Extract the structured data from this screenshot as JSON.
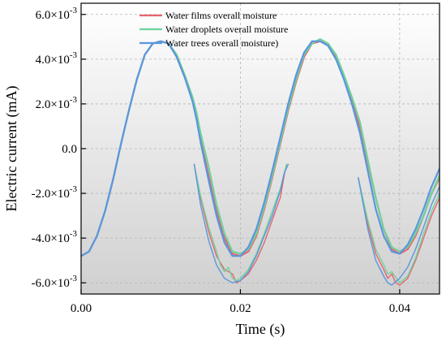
{
  "chart_data": {
    "type": "line",
    "title": "",
    "xlabel": "Time (s)",
    "ylabel": "Electric current (mA)",
    "xlim": [
      0,
      0.045
    ],
    "ylim": [
      -0.0065,
      0.0065
    ],
    "x_ticks": [
      0,
      0.02,
      0.04
    ],
    "x_tick_labels": [
      "0.00",
      "0.02",
      "0.04"
    ],
    "y_ticks": [
      0.006,
      0.004,
      0.002,
      0,
      -0.002,
      -0.004,
      -0.006
    ],
    "y_tick_labels": [
      {
        "mantissa": "6.0×10",
        "exp": "-3"
      },
      {
        "mantissa": "4.0×10",
        "exp": "-3"
      },
      {
        "mantissa": "2.0×10",
        "exp": "-3"
      },
      {
        "mantissa": "0.0",
        "exp": ""
      },
      {
        "mantissa": "-2.0×10",
        "exp": "-3"
      },
      {
        "mantissa": "-4.0×10",
        "exp": "-3"
      },
      {
        "mantissa": "-6.0×10",
        "exp": "-3"
      }
    ],
    "grid": true,
    "background": "vertical gradient white to gray",
    "legend_position": "top-center",
    "series": [
      {
        "name": "Water films overall moisture",
        "color": "#e8646e",
        "segments": [
          [
            [
              0,
              -0.0048
            ],
            [
              0.001,
              -0.0046
            ],
            [
              0.002,
              -0.0039
            ],
            [
              0.003,
              -0.0028
            ],
            [
              0.004,
              -0.0014
            ],
            [
              0.005,
              0.0002
            ],
            [
              0.006,
              0.0017
            ],
            [
              0.007,
              0.0031
            ],
            [
              0.008,
              0.0042
            ],
            [
              0.009,
              0.0047
            ],
            [
              0.01,
              0.0048
            ],
            [
              0.011,
              0.0047
            ],
            [
              0.012,
              0.0041
            ],
            [
              0.013,
              0.0032
            ],
            [
              0.014,
              0.0022
            ],
            [
              0.0145,
              0.0014
            ],
            [
              0.015,
              0.0004
            ],
            [
              0.016,
              -0.0012
            ],
            [
              0.017,
              -0.0028
            ],
            [
              0.018,
              -0.004
            ],
            [
              0.019,
              -0.0047
            ],
            [
              0.02,
              -0.0048
            ],
            [
              0.021,
              -0.0046
            ],
            [
              0.022,
              -0.0039
            ],
            [
              0.023,
              -0.0027
            ],
            [
              0.024,
              -0.0013
            ],
            [
              0.025,
              0.0002
            ],
            [
              0.026,
              0.0017
            ],
            [
              0.027,
              0.003
            ],
            [
              0.028,
              0.0041
            ],
            [
              0.029,
              0.0047
            ],
            [
              0.03,
              0.0048
            ],
            [
              0.031,
              0.0047
            ],
            [
              0.032,
              0.0041
            ],
            [
              0.033,
              0.0032
            ],
            [
              0.034,
              0.0022
            ],
            [
              0.035,
              0.001
            ],
            [
              0.036,
              -0.0006
            ],
            [
              0.037,
              -0.0022
            ],
            [
              0.038,
              -0.0036
            ],
            [
              0.039,
              -0.0045
            ],
            [
              0.04,
              -0.0047
            ],
            [
              0.041,
              -0.0045
            ],
            [
              0.042,
              -0.0039
            ],
            [
              0.043,
              -0.003
            ],
            [
              0.044,
              -0.002
            ],
            [
              0.045,
              -0.0013
            ]
          ],
          [
            [
              0.0142,
              -0.0007
            ],
            [
              0.015,
              -0.0022
            ],
            [
              0.016,
              -0.0037
            ],
            [
              0.017,
              -0.0048
            ],
            [
              0.018,
              -0.0054
            ],
            [
              0.019,
              -0.0056
            ],
            [
              0.0195,
              -0.006
            ],
            [
              0.02,
              -0.0059
            ],
            [
              0.021,
              -0.0056
            ],
            [
              0.022,
              -0.005
            ],
            [
              0.023,
              -0.0042
            ],
            [
              0.024,
              -0.0032
            ],
            [
              0.025,
              -0.0022
            ],
            [
              0.0255,
              -0.0012
            ],
            [
              0.0258,
              -0.0007
            ]
          ],
          [
            [
              0.0348,
              -0.0013
            ],
            [
              0.036,
              -0.0034
            ],
            [
              0.037,
              -0.0047
            ],
            [
              0.038,
              -0.0054
            ],
            [
              0.0385,
              -0.0058
            ],
            [
              0.039,
              -0.0056
            ],
            [
              0.0395,
              -0.006
            ],
            [
              0.04,
              -0.0061
            ],
            [
              0.041,
              -0.0058
            ],
            [
              0.042,
              -0.005
            ],
            [
              0.043,
              -0.004
            ],
            [
              0.044,
              -0.003
            ],
            [
              0.045,
              -0.0022
            ]
          ]
        ]
      },
      {
        "name": "Water droplets overall moisture",
        "color": "#6ed39a",
        "segments": [
          [
            [
              0,
              -0.0048
            ],
            [
              0.001,
              -0.0046
            ],
            [
              0.002,
              -0.0039
            ],
            [
              0.003,
              -0.0028
            ],
            [
              0.004,
              -0.0014
            ],
            [
              0.005,
              0.0002
            ],
            [
              0.006,
              0.0017
            ],
            [
              0.007,
              0.0031
            ],
            [
              0.008,
              0.0042
            ],
            [
              0.009,
              0.0047
            ],
            [
              0.01,
              0.0048
            ],
            [
              0.011,
              0.0047
            ],
            [
              0.012,
              0.0042
            ],
            [
              0.013,
              0.0033
            ],
            [
              0.014,
              0.0023
            ],
            [
              0.0145,
              0.0016
            ],
            [
              0.015,
              0.0007
            ],
            [
              0.016,
              -0.0008
            ],
            [
              0.017,
              -0.0025
            ],
            [
              0.018,
              -0.0038
            ],
            [
              0.019,
              -0.0046
            ],
            [
              0.02,
              -0.0047
            ],
            [
              0.021,
              -0.0045
            ],
            [
              0.022,
              -0.0038
            ],
            [
              0.023,
              -0.0026
            ],
            [
              0.024,
              -0.0012
            ],
            [
              0.025,
              0.0003
            ],
            [
              0.026,
              0.0018
            ],
            [
              0.027,
              0.0031
            ],
            [
              0.028,
              0.0042
            ],
            [
              0.029,
              0.0047
            ],
            [
              0.03,
              0.0049
            ],
            [
              0.031,
              0.0047
            ],
            [
              0.032,
              0.0042
            ],
            [
              0.033,
              0.0033
            ],
            [
              0.034,
              0.0023
            ],
            [
              0.035,
              0.0012
            ],
            [
              0.036,
              -0.0005
            ],
            [
              0.037,
              -0.0022
            ],
            [
              0.038,
              -0.0036
            ],
            [
              0.039,
              -0.0044
            ],
            [
              0.04,
              -0.0046
            ],
            [
              0.041,
              -0.0044
            ],
            [
              0.042,
              -0.0038
            ],
            [
              0.043,
              -0.003
            ],
            [
              0.044,
              -0.002
            ],
            [
              0.045,
              -0.0012
            ]
          ],
          [
            [
              0.0142,
              -0.0007
            ],
            [
              0.015,
              -0.0021
            ],
            [
              0.016,
              -0.0035
            ],
            [
              0.017,
              -0.0046
            ],
            [
              0.0175,
              -0.0052
            ],
            [
              0.018,
              -0.0055
            ],
            [
              0.0185,
              -0.0053
            ],
            [
              0.019,
              -0.0058
            ],
            [
              0.0195,
              -0.0059
            ],
            [
              0.02,
              -0.0058
            ],
            [
              0.021,
              -0.0054
            ],
            [
              0.022,
              -0.0047
            ],
            [
              0.023,
              -0.0038
            ],
            [
              0.024,
              -0.0028
            ],
            [
              0.025,
              -0.0018
            ],
            [
              0.0255,
              -0.0011
            ],
            [
              0.0258,
              -0.0007
            ]
          ],
          [
            [
              0.0348,
              -0.0013
            ],
            [
              0.036,
              -0.0032
            ],
            [
              0.037,
              -0.0045
            ],
            [
              0.038,
              -0.0052
            ],
            [
              0.0385,
              -0.0056
            ],
            [
              0.039,
              -0.0055
            ],
            [
              0.04,
              -0.006
            ],
            [
              0.041,
              -0.0057
            ],
            [
              0.042,
              -0.0049
            ],
            [
              0.043,
              -0.0038
            ],
            [
              0.044,
              -0.0028
            ],
            [
              0.045,
              -0.002
            ]
          ]
        ]
      },
      {
        "name": "Water trees overall moisture)",
        "color": "#5b96de",
        "segments": [
          [
            [
              0,
              -0.0048
            ],
            [
              0.001,
              -0.0046
            ],
            [
              0.002,
              -0.0039
            ],
            [
              0.003,
              -0.0028
            ],
            [
              0.004,
              -0.0014
            ],
            [
              0.005,
              0.0002
            ],
            [
              0.006,
              0.0017
            ],
            [
              0.007,
              0.0031
            ],
            [
              0.008,
              0.0042
            ],
            [
              0.009,
              0.0047
            ],
            [
              0.01,
              0.0048
            ],
            [
              0.011,
              0.0047
            ],
            [
              0.012,
              0.0041
            ],
            [
              0.013,
              0.0032
            ],
            [
              0.014,
              0.0021
            ],
            [
              0.0145,
              0.0013
            ],
            [
              0.015,
              0.0003
            ],
            [
              0.016,
              -0.0014
            ],
            [
              0.017,
              -0.003
            ],
            [
              0.018,
              -0.0042
            ],
            [
              0.019,
              -0.0048
            ],
            [
              0.02,
              -0.0048
            ],
            [
              0.021,
              -0.0044
            ],
            [
              0.022,
              -0.0036
            ],
            [
              0.023,
              -0.0024
            ],
            [
              0.024,
              -0.001
            ],
            [
              0.025,
              0.0005
            ],
            [
              0.026,
              0.002
            ],
            [
              0.027,
              0.0033
            ],
            [
              0.028,
              0.0043
            ],
            [
              0.029,
              0.0048
            ],
            [
              0.03,
              0.0048
            ],
            [
              0.031,
              0.0046
            ],
            [
              0.032,
              0.004
            ],
            [
              0.033,
              0.0031
            ],
            [
              0.034,
              0.002
            ],
            [
              0.035,
              0.0007
            ],
            [
              0.036,
              -0.001
            ],
            [
              0.037,
              -0.0027
            ],
            [
              0.038,
              -0.0039
            ],
            [
              0.039,
              -0.0046
            ],
            [
              0.04,
              -0.0047
            ],
            [
              0.041,
              -0.0043
            ],
            [
              0.042,
              -0.0036
            ],
            [
              0.043,
              -0.0027
            ],
            [
              0.044,
              -0.0017
            ],
            [
              0.045,
              -0.0009
            ]
          ],
          [
            [
              0.0142,
              -0.0007
            ],
            [
              0.015,
              -0.0025
            ],
            [
              0.016,
              -0.0041
            ],
            [
              0.017,
              -0.0052
            ],
            [
              0.018,
              -0.0058
            ],
            [
              0.019,
              -0.006
            ],
            [
              0.02,
              -0.0059
            ],
            [
              0.021,
              -0.0055
            ],
            [
              0.022,
              -0.0048
            ],
            [
              0.023,
              -0.0039
            ],
            [
              0.024,
              -0.003
            ],
            [
              0.025,
              -0.0019
            ],
            [
              0.0255,
              -0.0011
            ],
            [
              0.026,
              -0.0007
            ]
          ],
          [
            [
              0.0348,
              -0.0013
            ],
            [
              0.036,
              -0.0036
            ],
            [
              0.037,
              -0.005
            ],
            [
              0.038,
              -0.0057
            ],
            [
              0.0385,
              -0.006
            ],
            [
              0.039,
              -0.0061
            ],
            [
              0.04,
              -0.0058
            ],
            [
              0.041,
              -0.0053
            ],
            [
              0.042,
              -0.0045
            ],
            [
              0.043,
              -0.0035
            ],
            [
              0.044,
              -0.0025
            ],
            [
              0.045,
              -0.0017
            ]
          ]
        ]
      }
    ]
  }
}
